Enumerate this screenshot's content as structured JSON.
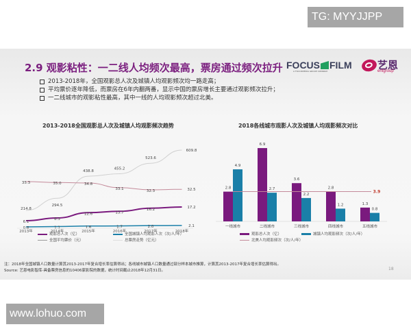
{
  "watermarks": {
    "top_right": "TG: MYYJJPP",
    "bottom_left": "www.lohuo.com"
  },
  "slide": {
    "title": "2.9 观影粘性：一二线人均频次最高，票房通过频次拉升",
    "logos": {
      "focus_film": "FOCUS",
      "focus_film_b": "FILM",
      "focus_sub": "A FOCUSMEDIA GROUP COMPANY",
      "ent_cn": "艺恩",
      "ent_en": "entgroup"
    },
    "bullets": [
      "2013-2018年，全国观影总人次及城镇人均观影频次均一路走高；",
      "平均票价逐年降低，而票房在6年内翻两番，显示中国的票房增长主要通过观影频次拉升；",
      "一二线城市的观影粘性最高，其中一线的人均观影频次超过北美。"
    ],
    "note": "注：2018年全国城镇人口数量计算其2013-2017年复合增长率估算得出；各线城市城镇人口数量通过部分样本城市推算，计算其2013-2017年复合增长率估算得出。",
    "source": "Source: 艺恩电影智库-具备票房信息的10406家影院的数据，统计时间截止2018年12月31日。",
    "page_number": "18",
    "colors": {
      "title": "#7b1f7f",
      "purple": "#7a1a7e",
      "teal": "#1a7fa8",
      "pink_line": "#c48a9a",
      "gray_line": "#d0d0d0",
      "reference_value": "#c0392b"
    }
  },
  "chart_data": [
    {
      "type": "line",
      "title": "2013-2018全国观影总人次及城镇人均观影频次趋势",
      "categories": [
        "2013年",
        "2014年",
        "2015年",
        "2016年",
        "2017年",
        "2018年"
      ],
      "series": [
        {
          "name": "观影总人次（亿）",
          "color": "#7a1a7e",
          "values": [
            6.1,
            8.3,
            12.6,
            13.7,
            16.2,
            17.2
          ]
        },
        {
          "name": "全国城镇人均观影人次（次/人/年）",
          "color": "#1a7fa8",
          "values": [
            0.8,
            1.1,
            1.6,
            1.7,
            2.0,
            2.1
          ]
        },
        {
          "name": "全国平均票价（元）",
          "color": "#c48a9a",
          "values": [
            35.3,
            35.0,
            34.8,
            33.1,
            32.3,
            32.5
          ]
        },
        {
          "name": "总票房走势（亿元）",
          "color": "#d0d0d0",
          "values": [
            214.8,
            294.5,
            438.8,
            455.2,
            523.6,
            609.8
          ]
        }
      ],
      "labels": {
        "box_office": [
          "214.8",
          "294.5",
          "438.8",
          "455.2",
          "523.6",
          "609.8"
        ],
        "ticket_price": [
          "35.3",
          "35.0",
          "34.8",
          "33.1",
          "32.3",
          "32.5"
        ],
        "admissions": [
          "6.1",
          "8.3",
          "12.6",
          "13.7",
          "16.2",
          "17.2"
        ],
        "per_capita": [
          "0.8",
          "1.1",
          "1.6",
          "1.7",
          "2.0",
          "2.1"
        ]
      },
      "xlabel": "",
      "ylabel": "",
      "grid": false,
      "legend_position": "bottom"
    },
    {
      "type": "bar",
      "title": "2018各线城市观影人次及城镇人均观影频次对比",
      "categories": [
        "一线城市",
        "二线城市",
        "三线城市",
        "四线城市",
        "五线城市"
      ],
      "series": [
        {
          "name": "观影总人次（亿）",
          "color": "#7a1a7e",
          "values": [
            2.8,
            6.9,
            3.6,
            2.8,
            1.3
          ]
        },
        {
          "name": "城镇人均观影频次（次/人/年）",
          "color": "#1a7fa8",
          "values": [
            4.9,
            2.7,
            2.2,
            1.2,
            0.8
          ]
        }
      ],
      "reference_line": {
        "name": "北美人均观影频次（次/人/年）",
        "value": 3.9,
        "label": "3.9"
      },
      "labels": {
        "admissions": [
          "2.8",
          "6.9",
          "3.6",
          "2.8",
          "1.3"
        ],
        "per_capita": [
          "4.9",
          "2.7",
          "2.2",
          "1.2",
          "0.8"
        ]
      },
      "xlabel": "",
      "ylabel": "",
      "ylim": [
        0,
        7.5
      ],
      "grid": false,
      "legend_position": "bottom"
    }
  ]
}
